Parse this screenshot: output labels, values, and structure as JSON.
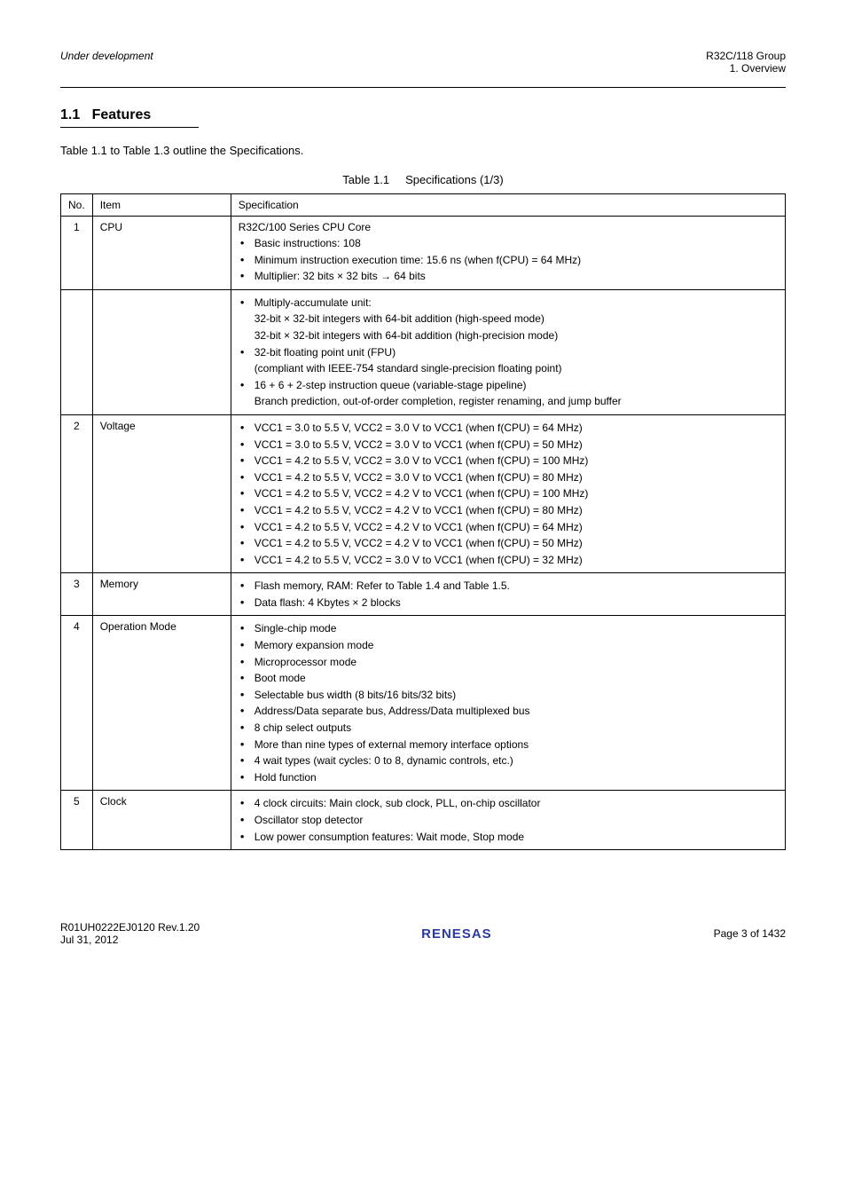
{
  "header": {
    "left": "Under development",
    "right_chapter": "R32C/118 Group",
    "right_section": "1. Overview"
  },
  "section": {
    "number": "1.1",
    "title": "Features"
  },
  "intro": "Table 1.1 to Table 1.3 outline the Specifications.",
  "table": {
    "caption_label": "Table 1.1",
    "caption_title": "Specifications (1/3)",
    "columns": [
      "No.",
      "Item",
      "Specification"
    ],
    "rows": [
      {
        "no": "1",
        "item": "CPU",
        "spec_lead": "R32C/100 Series CPU Core",
        "bullets": [
          "Basic instructions: 108",
          "Minimum instruction execution time: 15.6 ns (when f(CPU) = 64 MHz)",
          "Multiplier: 32 bits × 32 bits → 64 bits"
        ]
      },
      {
        "no": "",
        "item": "",
        "bullets": [
          "Multiply-accumulate unit:\n32-bit × 32-bit integers with 64-bit addition (high-speed mode)\n32-bit × 32-bit integers with 64-bit addition (high-precision mode)",
          "32-bit floating point unit (FPU)\n(compliant with IEEE-754 standard single-precision floating point)",
          "16 + 6 + 2-step instruction queue (variable-stage pipeline)\nBranch prediction, out-of-order completion, register renaming, and jump buffer"
        ]
      },
      {
        "no": "2",
        "item": "Voltage",
        "bullets": [
          "VCC1 = 3.0 to 5.5 V, VCC2 = 3.0 V to VCC1 (when f(CPU) = 64 MHz)",
          "VCC1 = 3.0 to 5.5 V, VCC2 = 3.0 V to VCC1 (when f(CPU) = 50 MHz)",
          "VCC1 = 4.2 to 5.5 V, VCC2 = 3.0 V to VCC1 (when f(CPU) = 100 MHz)",
          "VCC1 = 4.2 to 5.5 V, VCC2 = 3.0 V to VCC1 (when f(CPU) = 80 MHz)",
          "VCC1 = 4.2 to 5.5 V, VCC2 = 4.2 V to VCC1 (when f(CPU) = 100 MHz)",
          "VCC1 = 4.2 to 5.5 V, VCC2 = 4.2 V to VCC1 (when f(CPU) = 80 MHz)",
          "VCC1 = 4.2 to 5.5 V, VCC2 = 4.2 V to VCC1 (when f(CPU) = 64 MHz)",
          "VCC1 = 4.2 to 5.5 V, VCC2 = 4.2 V to VCC1 (when f(CPU) = 50 MHz)",
          "VCC1 = 4.2 to 5.5 V, VCC2 = 3.0 V to VCC1 (when f(CPU) = 32 MHz)"
        ]
      },
      {
        "no": "3",
        "item": "Memory",
        "bullets": [
          "Flash memory, RAM: Refer to Table 1.4 and Table 1.5.",
          "Data flash: 4 Kbytes × 2 blocks"
        ]
      },
      {
        "no": "4",
        "item": "Operation Mode",
        "bullets": [
          "Single-chip mode",
          "Memory expansion mode",
          "Microprocessor mode",
          "Boot mode",
          "Selectable bus width (8 bits/16 bits/32 bits)",
          "Address/Data separate bus, Address/Data multiplexed bus",
          "8 chip select outputs",
          "More than nine types of external memory interface options",
          "4 wait types (wait cycles: 0 to 8, dynamic controls, etc.)",
          "Hold function"
        ]
      },
      {
        "no": "5",
        "item": "Clock",
        "bullets": [
          "4 clock circuits: Main clock, sub clock, PLL, on-chip oscillator",
          "Oscillator stop detector",
          "Low power consumption features: Wait mode, Stop mode"
        ]
      }
    ]
  },
  "footer": {
    "left": "R01UH0222EJ0120   Rev.1.20",
    "date": "Jul 31, 2012",
    "logo_text": "RENESAS",
    "page": "Page 3 of 1432"
  }
}
